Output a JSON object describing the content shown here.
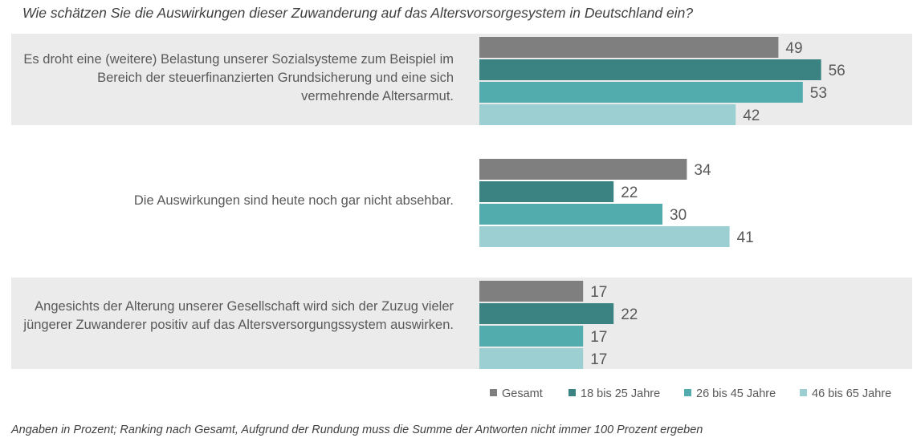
{
  "chart_data": {
    "type": "bar",
    "orientation": "horizontal",
    "title": "Wie schätzen Sie die Auswirkungen dieser Zuwanderung auf das Altersvorsorgesystem in Deutschland ein?",
    "categories": [
      "Es droht eine (weitere) Belastung unserer Sozialsysteme zum Beispiel im Bereich der steuerfinanzierten Grundsicherung und eine sich vermehrende Altersarmut.",
      "Die Auswirkungen sind heute noch gar nicht absehbar.",
      "Angesichts der Alterung unserer Gesellschaft wird sich der Zuzug vieler jüngerer Zuwanderer positiv auf das Altersversorgungssystem auswirken."
    ],
    "series": [
      {
        "name": "Gesamt",
        "color": "#7f7f7f",
        "values": [
          49,
          34,
          17
        ]
      },
      {
        "name": "18 bis 25 Jahre",
        "color": "#3b8383",
        "values": [
          56,
          22,
          22
        ]
      },
      {
        "name": "26 bis 45 Jahre",
        "color": "#52acad",
        "values": [
          53,
          30,
          17
        ]
      },
      {
        "name": "46 bis 65 Jahre",
        "color": "#9ccfd1",
        "values": [
          42,
          41,
          17
        ]
      }
    ],
    "xlim": [
      0,
      60
    ],
    "legend_position": "bottom-right",
    "grid": false,
    "data_labels": true
  },
  "footnote": "Angaben in Prozent; Ranking nach Gesamt, Aufgrund der Rundung muss die Summe der Antworten nicht immer 100 Prozent ergeben"
}
